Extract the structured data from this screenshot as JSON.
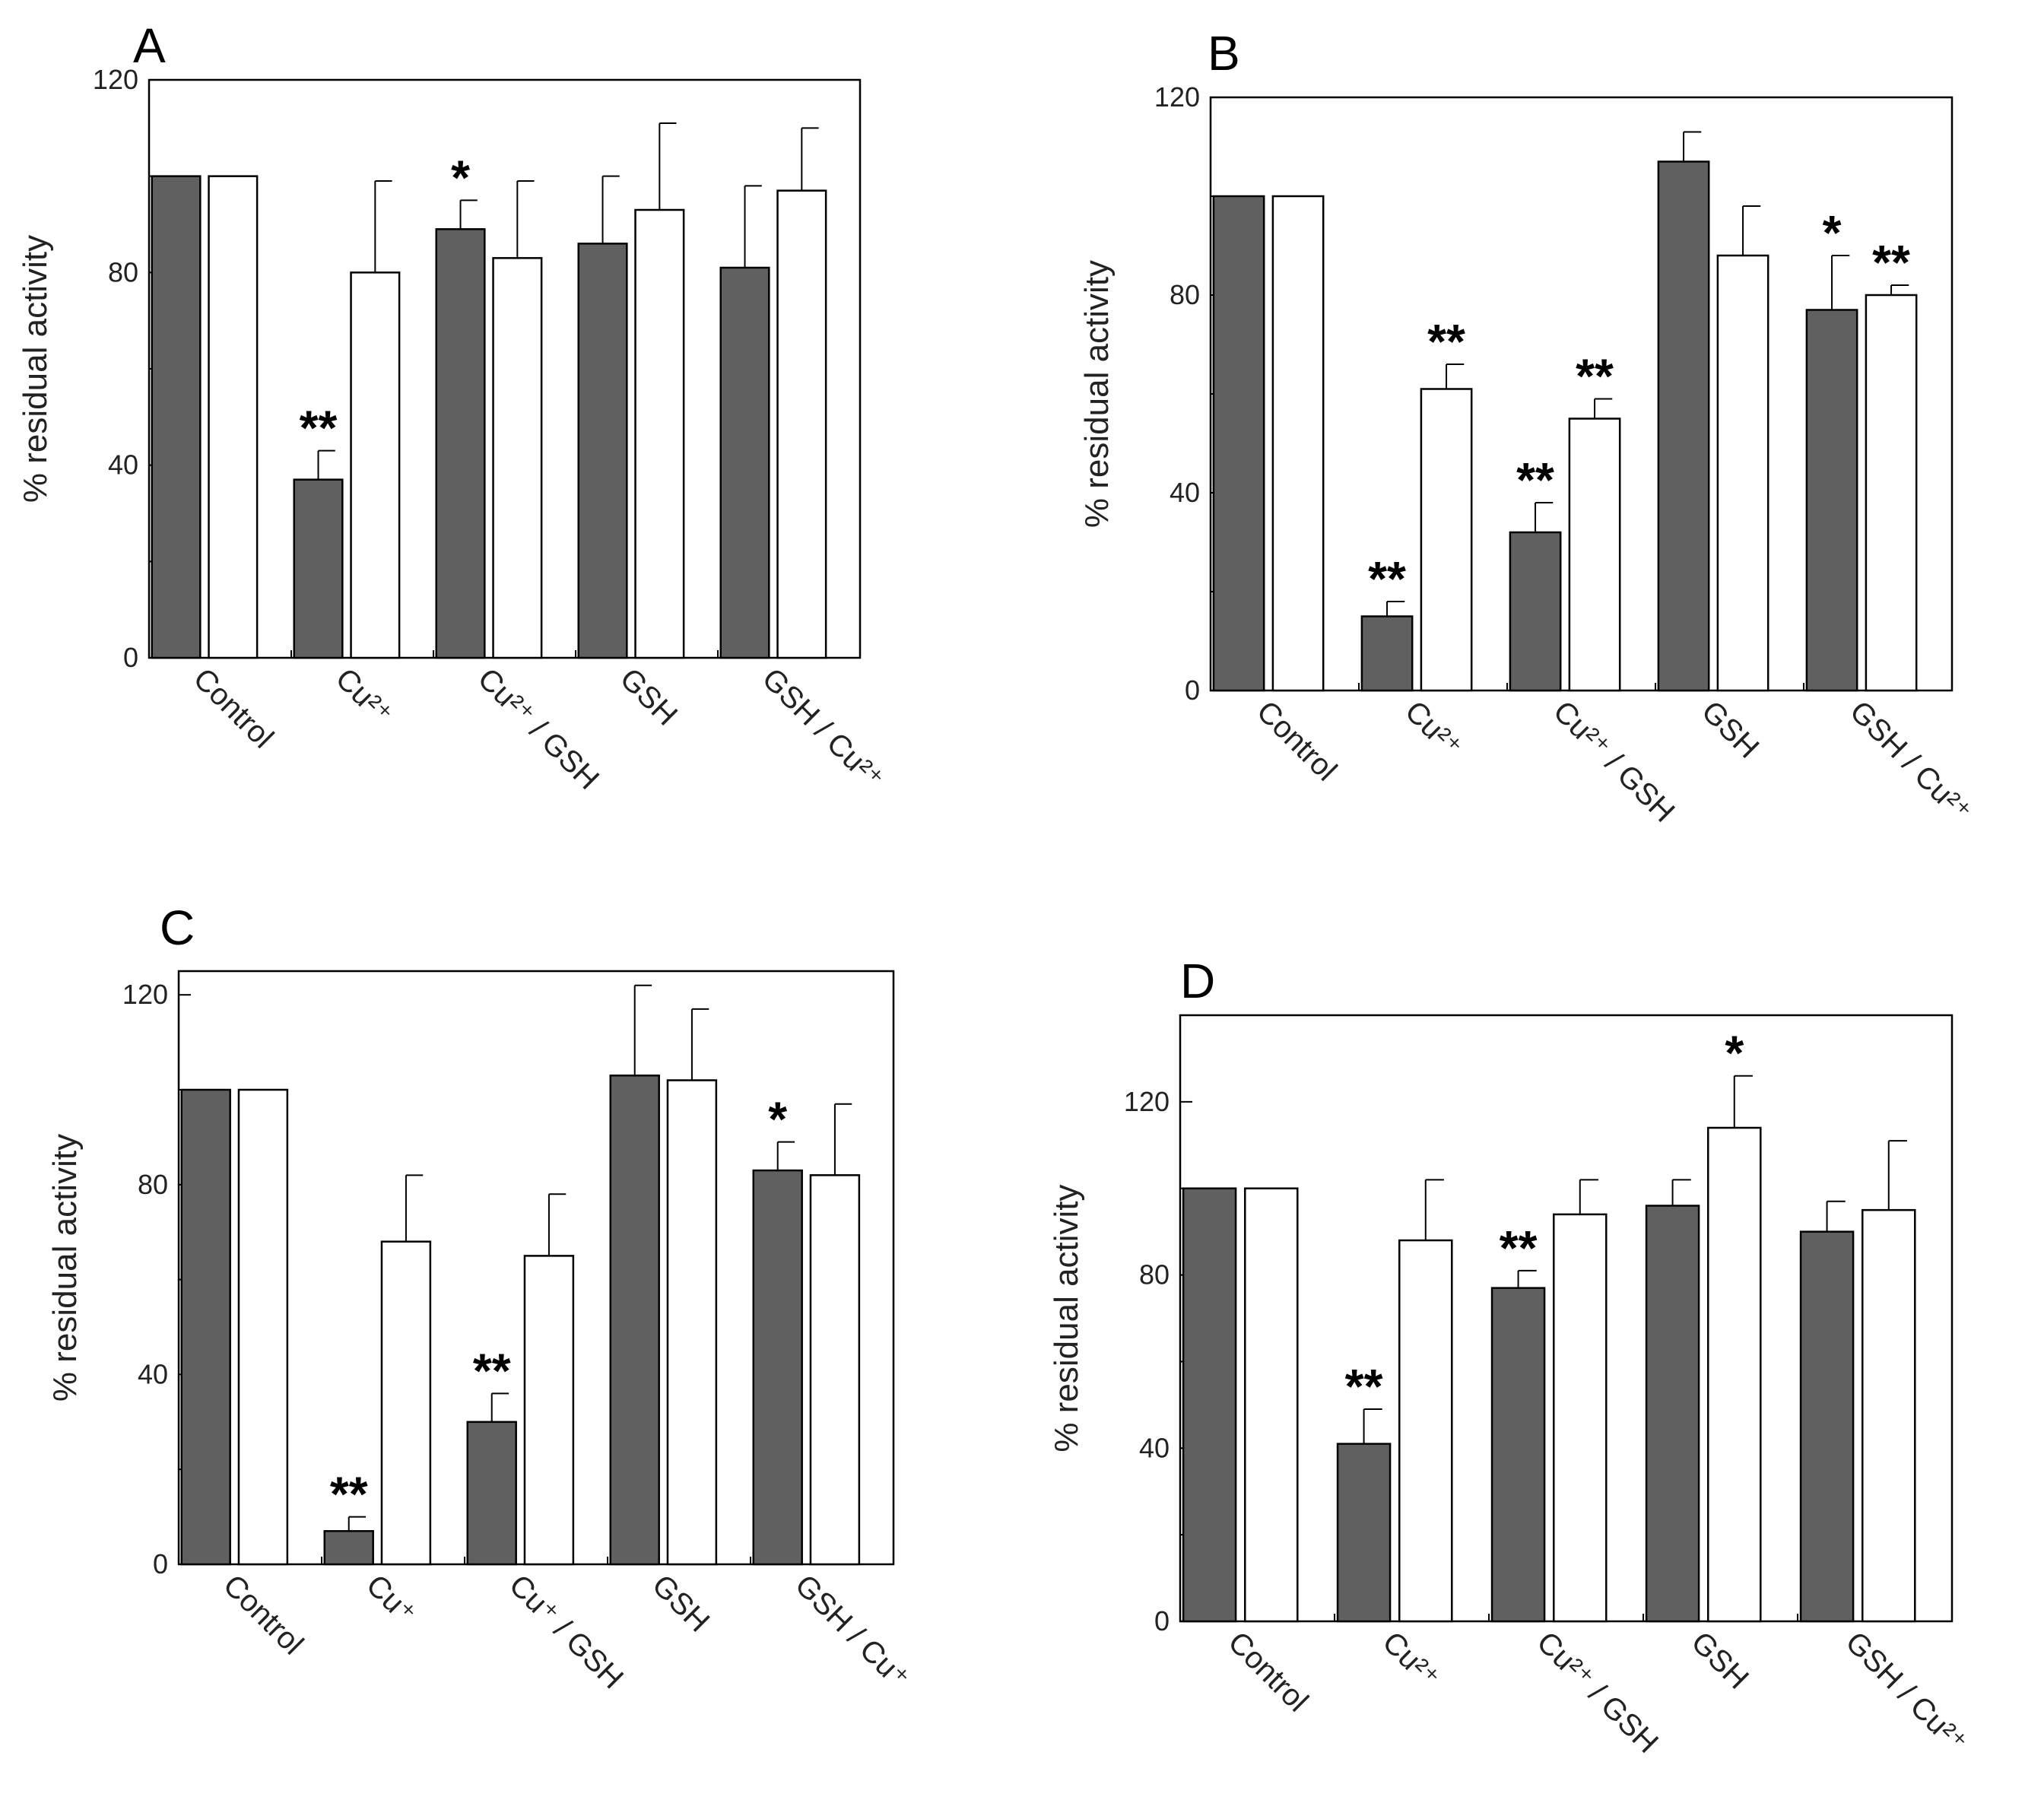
{
  "chart_data": [
    {
      "type": "bar",
      "panel": "A",
      "ylabel": "% residual activity",
      "ylim": [
        0,
        120
      ],
      "yticks": [
        "0",
        "40",
        "80",
        "120"
      ],
      "categories": [
        "Control",
        "Cu²⁺",
        "Cu²⁺ / GSH",
        "GSH",
        "GSH / Cu²⁺"
      ],
      "series": [
        {
          "name": "filled",
          "color": "#606060",
          "values": [
            100,
            37,
            89,
            86,
            81
          ],
          "errors": [
            0,
            6,
            6,
            14,
            17
          ],
          "significance": [
            "",
            "**",
            "*",
            "",
            ""
          ]
        },
        {
          "name": "open",
          "color": "#ffffff",
          "values": [
            100,
            80,
            83,
            93,
            97
          ],
          "errors": [
            0,
            19,
            16,
            18,
            13
          ],
          "significance": [
            "",
            "",
            "",
            "",
            ""
          ]
        }
      ]
    },
    {
      "type": "bar",
      "panel": "B",
      "ylabel": "% residual activity",
      "ylim": [
        0,
        120
      ],
      "yticks": [
        "0",
        "40",
        "80",
        "120"
      ],
      "categories": [
        "Control",
        "Cu²⁺",
        "Cu²⁺ / GSH",
        "GSH",
        "GSH / Cu²⁺"
      ],
      "series": [
        {
          "name": "filled",
          "color": "#606060",
          "values": [
            100,
            15,
            32,
            107,
            77
          ],
          "errors": [
            0,
            3,
            6,
            6,
            11
          ],
          "significance": [
            "",
            "**",
            "**",
            "",
            "*"
          ]
        },
        {
          "name": "open",
          "color": "#ffffff",
          "values": [
            100,
            61,
            55,
            88,
            80
          ],
          "errors": [
            0,
            5,
            4,
            10,
            2
          ],
          "significance": [
            "",
            "**",
            "**",
            "",
            "**"
          ]
        }
      ]
    },
    {
      "type": "bar",
      "panel": "C",
      "ylabel": "% residual activity",
      "ylim": [
        0,
        125
      ],
      "yticks": [
        "0",
        "40",
        "80",
        "120"
      ],
      "categories": [
        "Control",
        "Cu⁺",
        "Cu⁺ / GSH",
        "GSH",
        "GSH / Cu⁺"
      ],
      "series": [
        {
          "name": "filled",
          "color": "#606060",
          "values": [
            100,
            7,
            30,
            103,
            83
          ],
          "errors": [
            0,
            3,
            6,
            19,
            6
          ],
          "significance": [
            "",
            "**",
            "**",
            "",
            "*"
          ]
        },
        {
          "name": "open",
          "color": "#ffffff",
          "values": [
            100,
            68,
            65,
            102,
            82
          ],
          "errors": [
            0,
            14,
            13,
            15,
            15
          ],
          "significance": [
            "",
            "",
            "",
            "",
            ""
          ]
        }
      ]
    },
    {
      "type": "bar",
      "panel": "D",
      "ylabel": "% residual activity",
      "ylim": [
        0,
        140
      ],
      "yticks": [
        "0",
        "40",
        "80",
        "120"
      ],
      "categories": [
        "Control",
        "Cu²⁺",
        "Cu²⁺ / GSH",
        "GSH",
        "GSH / Cu²⁺"
      ],
      "series": [
        {
          "name": "filled",
          "color": "#606060",
          "values": [
            100,
            41,
            77,
            96,
            90
          ],
          "errors": [
            0,
            8,
            4,
            6,
            7
          ],
          "significance": [
            "",
            "**",
            "**",
            "",
            ""
          ]
        },
        {
          "name": "open",
          "color": "#ffffff",
          "values": [
            100,
            88,
            94,
            114,
            95
          ],
          "errors": [
            0,
            14,
            8,
            12,
            16
          ],
          "significance": [
            "",
            "",
            "",
            "*",
            ""
          ]
        }
      ]
    }
  ]
}
